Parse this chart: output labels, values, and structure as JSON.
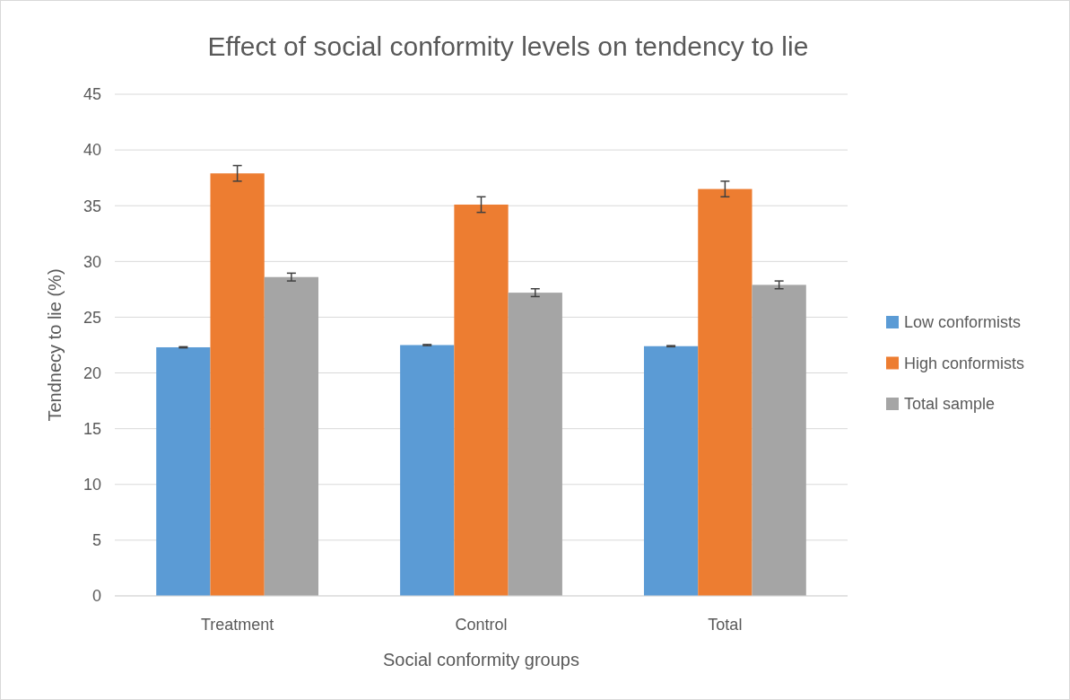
{
  "chart_data": {
    "type": "bar",
    "title": "Effect of social conformity levels on tendency to lie",
    "xlabel": "Social conformity groups",
    "ylabel": "Tendnecy to lie (%)",
    "categories": [
      "Treatment",
      "Control",
      "Total"
    ],
    "series": [
      {
        "name": "Low conformists",
        "color": "#5b9bd5",
        "values": [
          22.3,
          22.5,
          22.4
        ],
        "errors": [
          0.05,
          0.05,
          0.05
        ]
      },
      {
        "name": "High conformists",
        "color": "#ed7d31",
        "values": [
          37.9,
          35.1,
          36.5
        ],
        "errors": [
          0.7,
          0.7,
          0.7
        ]
      },
      {
        "name": "Total sample",
        "color": "#a5a5a5",
        "values": [
          28.6,
          27.2,
          27.9
        ],
        "errors": [
          0.35,
          0.35,
          0.35
        ]
      }
    ],
    "ylim": [
      0,
      45
    ],
    "yticks": [
      0,
      5,
      10,
      15,
      20,
      25,
      30,
      35,
      40,
      45
    ],
    "grid": "y",
    "legend": "right"
  }
}
